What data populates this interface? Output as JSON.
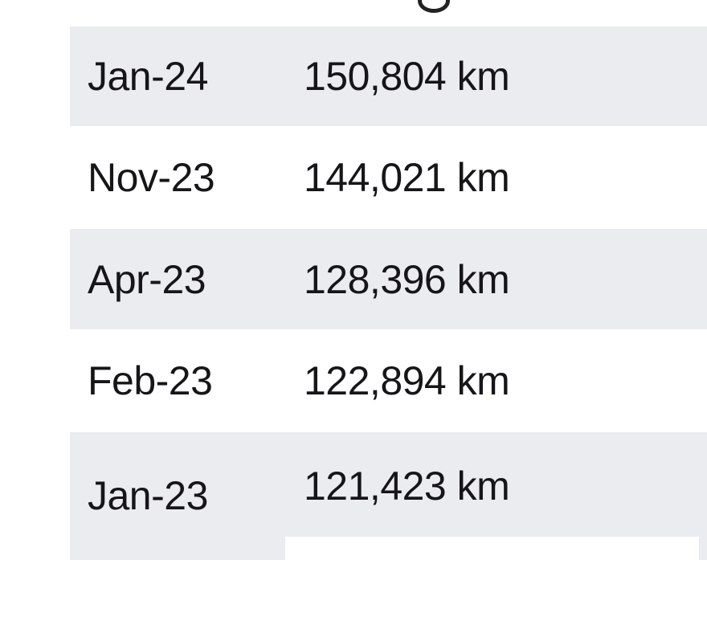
{
  "table": {
    "rows": [
      {
        "date": "Jan-24",
        "distance": "150,804 km"
      },
      {
        "date": "Nov-23",
        "distance": "144,021 km"
      },
      {
        "date": "Apr-23",
        "distance": "128,396 km"
      },
      {
        "date": "Feb-23",
        "distance": "122,894 km"
      },
      {
        "date": "Jan-23",
        "distance": "121,423 km"
      }
    ],
    "stripe_color": "#ebecf0"
  }
}
